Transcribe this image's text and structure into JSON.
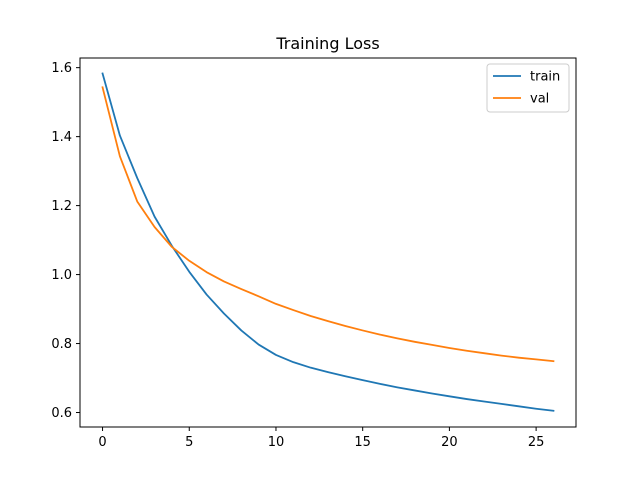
{
  "chart_data": {
    "type": "line",
    "title": "Training Loss",
    "xlabel": "",
    "ylabel": "",
    "xlim": [
      -1.3,
      27.3
    ],
    "ylim": [
      0.558,
      1.628
    ],
    "xticks": [
      0,
      5,
      10,
      15,
      20,
      25
    ],
    "xtick_labels": [
      "0",
      "5",
      "10",
      "15",
      "20",
      "25"
    ],
    "yticks": [
      0.6,
      0.8,
      1.0,
      1.2,
      1.4,
      1.6
    ],
    "ytick_labels": [
      "0.6",
      "0.8",
      "1.0",
      "1.2",
      "1.4",
      "1.6"
    ],
    "grid": false,
    "legend_position": "top-right",
    "x": [
      0,
      1,
      2,
      3,
      4,
      5,
      6,
      7,
      8,
      9,
      10,
      11,
      12,
      13,
      14,
      15,
      16,
      17,
      18,
      19,
      20,
      21,
      22,
      23,
      24,
      25,
      26
    ],
    "series": [
      {
        "name": "train",
        "color": "#1f77b4",
        "values": [
          1.583,
          1.403,
          1.28,
          1.168,
          1.083,
          1.008,
          0.942,
          0.887,
          0.838,
          0.797,
          0.767,
          0.746,
          0.73,
          0.717,
          0.705,
          0.694,
          0.683,
          0.673,
          0.664,
          0.655,
          0.647,
          0.639,
          0.632,
          0.625,
          0.618,
          0.611,
          0.605
        ]
      },
      {
        "name": "val",
        "color": "#ff7f0e",
        "values": [
          1.543,
          1.343,
          1.212,
          1.138,
          1.08,
          1.04,
          1.007,
          0.98,
          0.958,
          0.937,
          0.915,
          0.897,
          0.88,
          0.865,
          0.851,
          0.838,
          0.826,
          0.815,
          0.805,
          0.796,
          0.787,
          0.779,
          0.772,
          0.765,
          0.759,
          0.754,
          0.749
        ]
      }
    ]
  }
}
